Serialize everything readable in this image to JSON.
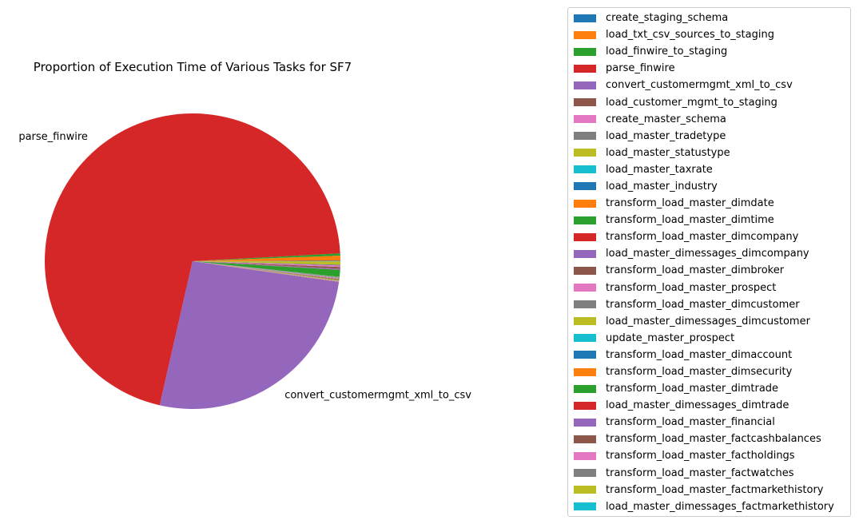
{
  "chart_data": {
    "type": "pie",
    "title": "Proportion of Execution Time of Various Tasks for SF7",
    "start_angle_deg": 0,
    "direction": "counterclockwise",
    "legend_position": "right",
    "labels": [
      "create_staging_schema",
      "load_txt_csv_sources_to_staging",
      "load_finwire_to_staging",
      "parse_finwire",
      "convert_customermgmt_xml_to_csv",
      "load_customer_mgmt_to_staging",
      "create_master_schema",
      "load_master_tradetype",
      "load_master_statustype",
      "load_master_taxrate",
      "load_master_industry",
      "transform_load_master_dimdate",
      "transform_load_master_dimtime",
      "transform_load_master_dimcompany",
      "load_master_dimessages_dimcompany",
      "transform_load_master_dimbroker",
      "transform_load_master_prospect",
      "transform_load_master_dimcustomer",
      "load_master_dimessages_dimcustomer",
      "update_master_prospect",
      "transform_load_master_dimaccount",
      "transform_load_master_dimsecurity",
      "transform_load_master_dimtrade",
      "load_master_dimessages_dimtrade",
      "transform_load_master_financial",
      "transform_load_master_factcashbalances",
      "transform_load_master_factholdings",
      "transform_load_master_factwatches",
      "transform_load_master_factmarkethistory",
      "load_master_dimessages_factmarkethistory"
    ],
    "values": [
      0.05,
      0.55,
      0.25,
      70.6,
      26.3,
      0.05,
      0.05,
      0.02,
      0.02,
      0.02,
      0.02,
      0.05,
      0.05,
      0.05,
      0.02,
      0.02,
      0.05,
      0.05,
      0.02,
      0.02,
      0.05,
      0.03,
      0.75,
      0.02,
      0.1,
      0.2,
      0.15,
      0.1,
      0.35,
      0.02
    ],
    "colors": [
      "#1f77b4",
      "#ff7f0e",
      "#2ca02c",
      "#d62728",
      "#9467bd",
      "#8c564b",
      "#e377c2",
      "#7f7f7f",
      "#bcbd22",
      "#17becf",
      "#1f77b4",
      "#ff7f0e",
      "#2ca02c",
      "#d62728",
      "#9467bd",
      "#8c564b",
      "#e377c2",
      "#7f7f7f",
      "#bcbd22",
      "#17becf",
      "#1f77b4",
      "#ff7f0e",
      "#2ca02c",
      "#d62728",
      "#9467bd",
      "#8c564b",
      "#e377c2",
      "#7f7f7f",
      "#bcbd22",
      "#17becf"
    ],
    "slice_labels": [
      {
        "index": 3,
        "text": "parse_finwire"
      },
      {
        "index": 4,
        "text": "convert_customermgmt_xml_to_csv"
      }
    ]
  }
}
